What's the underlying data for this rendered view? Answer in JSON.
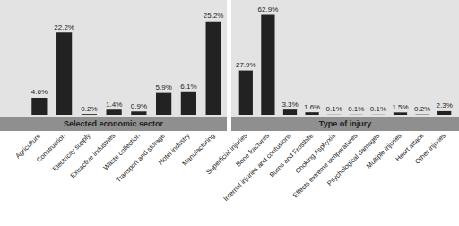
{
  "chart_data": [
    {
      "type": "bar",
      "title": "Selected economic sector",
      "categories": [
        "Agriculture",
        "Construction",
        "Electricity supply",
        "Extractive industries",
        "Waste collection",
        "Transport and storage",
        "Hotel industry",
        "Manufacturing"
      ],
      "values": [
        4.6,
        22.2,
        0.2,
        1.4,
        0.9,
        5.9,
        6.1,
        25.2
      ],
      "value_labels": [
        "4.6%",
        "22.2%",
        "0.2%",
        "1.4%",
        "0.9%",
        "5.9%",
        "6.1%",
        "25.2%"
      ],
      "color": "#222222",
      "data_labels": true,
      "tick_labels": "x"
    },
    {
      "type": "bar",
      "title": "Type of injury",
      "categories": [
        "Superficial injuries",
        "Bone fractures",
        "Internal injuries and contusions",
        "Burns and Frostbite",
        "Choking Asphyxia",
        "Effects extreme temperatures",
        "Psychological damages",
        "Multiple injuries",
        "Heart attack",
        "Other injuries"
      ],
      "values": [
        27.9,
        62.9,
        3.3,
        1.6,
        0.1,
        0.1,
        0.1,
        1.5,
        0.2,
        2.3
      ],
      "value_labels": [
        "27.9%",
        "62.9%",
        "3.3%",
        "1.6%",
        "0.1%",
        "0.1%",
        "0.1%",
        "1.5%",
        "0.2%",
        "2.3%"
      ],
      "color": "#222222",
      "data_labels": true,
      "tick_labels": "x"
    }
  ]
}
